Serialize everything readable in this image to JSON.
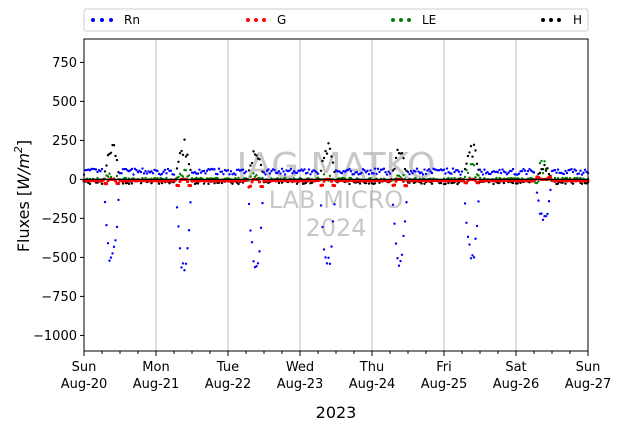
{
  "chart_data": {
    "type": "scatter",
    "ylabel_main": "Fluxes [",
    "ylabel_unit": "W/m",
    "ylabel_exp": "2",
    "ylabel_end": "]",
    "xlabel": "2023",
    "ylim": [
      -1100,
      900
    ],
    "yticks": [
      750,
      500,
      250,
      0,
      -250,
      -500,
      -750,
      -1000
    ],
    "ytick_labels": [
      "750",
      "500",
      "250",
      "0",
      "−250",
      "−500",
      "−750",
      "−1000"
    ],
    "xlim_days": [
      0,
      7
    ],
    "xticks": [
      {
        "day": 0,
        "weekday": "Sun",
        "date": "Aug-20"
      },
      {
        "day": 1,
        "weekday": "Mon",
        "date": "Aug-21"
      },
      {
        "day": 2,
        "weekday": "Tue",
        "date": "Aug-22"
      },
      {
        "day": 3,
        "weekday": "Wed",
        "date": "Aug-23"
      },
      {
        "day": 4,
        "weekday": "Thu",
        "date": "Aug-24"
      },
      {
        "day": 5,
        "weekday": "Fri",
        "date": "Aug-25"
      },
      {
        "day": 6,
        "weekday": "Sat",
        "date": "Aug-26"
      },
      {
        "day": 7,
        "weekday": "Sun",
        "date": "Aug-27"
      }
    ],
    "grid_x": true,
    "legend_position": "top, spanning full width",
    "watermark": [
      "IAG MATKO",
      "LAB MICRO",
      "2024"
    ],
    "series": [
      {
        "name": "Rn",
        "color": "#0000ff"
      },
      {
        "name": "G",
        "color": "#ff0000"
      },
      {
        "name": "LE",
        "color": "#008000"
      },
      {
        "name": "H",
        "color": "#000000"
      }
    ],
    "daily_peaks": {
      "Rn_min": [
        -550,
        -590,
        -590,
        -580,
        -560,
        -530,
        -280
      ],
      "H_max": [
        230,
        250,
        200,
        240,
        200,
        235,
        90
      ],
      "LE_max": [
        60,
        80,
        60,
        50,
        40,
        120,
        220
      ],
      "G_min": [
        -30,
        -45,
        -55,
        -45,
        -45,
        -25,
        15
      ]
    }
  }
}
